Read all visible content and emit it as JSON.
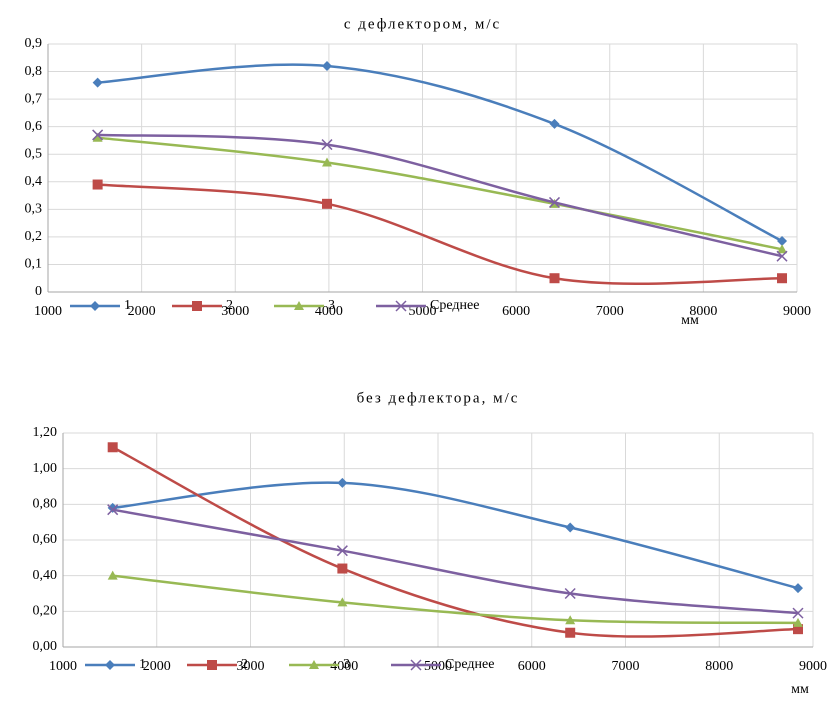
{
  "chart_data": [
    {
      "type": "line",
      "title": "с дефлектором, м/с",
      "xlabel": "мм",
      "x": [
        1530,
        3980,
        6410,
        8840
      ],
      "xlim": [
        1000,
        9000
      ],
      "xticks": [
        1000,
        2000,
        3000,
        4000,
        5000,
        6000,
        7000,
        8000,
        9000
      ],
      "ylim": [
        0,
        0.9
      ],
      "yticks": [
        0,
        {
          "value": 0.1,
          "label": "0,1"
        },
        {
          "value": 0.2,
          "label": "0,2"
        },
        {
          "value": 0.3,
          "label": "0,3"
        },
        {
          "value": 0.4,
          "label": "0,4"
        },
        {
          "value": 0.5,
          "label": "0,5"
        },
        {
          "value": 0.6,
          "label": "0,6"
        },
        {
          "value": 0.7,
          "label": "0,7"
        },
        {
          "value": 0.8,
          "label": "0,8"
        },
        {
          "value": 0.9,
          "label": "0,9"
        }
      ],
      "grid": true,
      "smooth": true,
      "legend": "bottom",
      "series": [
        {
          "name": "1",
          "color": "#4a7ebb",
          "marker": "diamond",
          "values": [
            0.76,
            0.82,
            0.61,
            0.185
          ]
        },
        {
          "name": "2",
          "color": "#be4b48",
          "marker": "square",
          "values": [
            0.39,
            0.32,
            0.05,
            0.05
          ]
        },
        {
          "name": "3",
          "color": "#98b954",
          "marker": "triangle",
          "values": [
            0.56,
            0.47,
            0.32,
            0.155
          ]
        },
        {
          "name": "Среднее",
          "color": "#7d60a0",
          "marker": "x",
          "values": [
            0.57,
            0.535,
            0.325,
            0.13
          ]
        }
      ]
    },
    {
      "type": "line",
      "title": "без дефлектора, м/с",
      "xlabel": "мм",
      "x": [
        1530,
        3980,
        6410,
        8840
      ],
      "xlim": [
        1000,
        9000
      ],
      "xticks": [
        1000,
        2000,
        3000,
        4000,
        5000,
        6000,
        7000,
        8000,
        9000
      ],
      "ylim": [
        0,
        1.2
      ],
      "yticks": [
        {
          "value": 0,
          "label": "0,00"
        },
        {
          "value": 0.2,
          "label": "0,20"
        },
        {
          "value": 0.4,
          "label": "0,40"
        },
        {
          "value": 0.6,
          "label": "0,60"
        },
        {
          "value": 0.8,
          "label": "0,80"
        },
        {
          "value": 1.0,
          "label": "1,00"
        },
        {
          "value": 1.2,
          "label": "1,20"
        }
      ],
      "grid": true,
      "smooth": true,
      "legend": "bottom",
      "series": [
        {
          "name": "1",
          "color": "#4a7ebb",
          "marker": "diamond",
          "values": [
            0.78,
            0.92,
            0.67,
            0.33
          ]
        },
        {
          "name": "2",
          "color": "#be4b48",
          "marker": "square",
          "values": [
            1.12,
            0.44,
            0.08,
            0.1
          ]
        },
        {
          "name": "3",
          "color": "#98b954",
          "marker": "triangle",
          "values": [
            0.4,
            0.25,
            0.15,
            0.135
          ]
        },
        {
          "name": "Среднее",
          "color": "#7d60a0",
          "marker": "x",
          "values": [
            0.77,
            0.54,
            0.3,
            0.19
          ]
        }
      ]
    }
  ]
}
